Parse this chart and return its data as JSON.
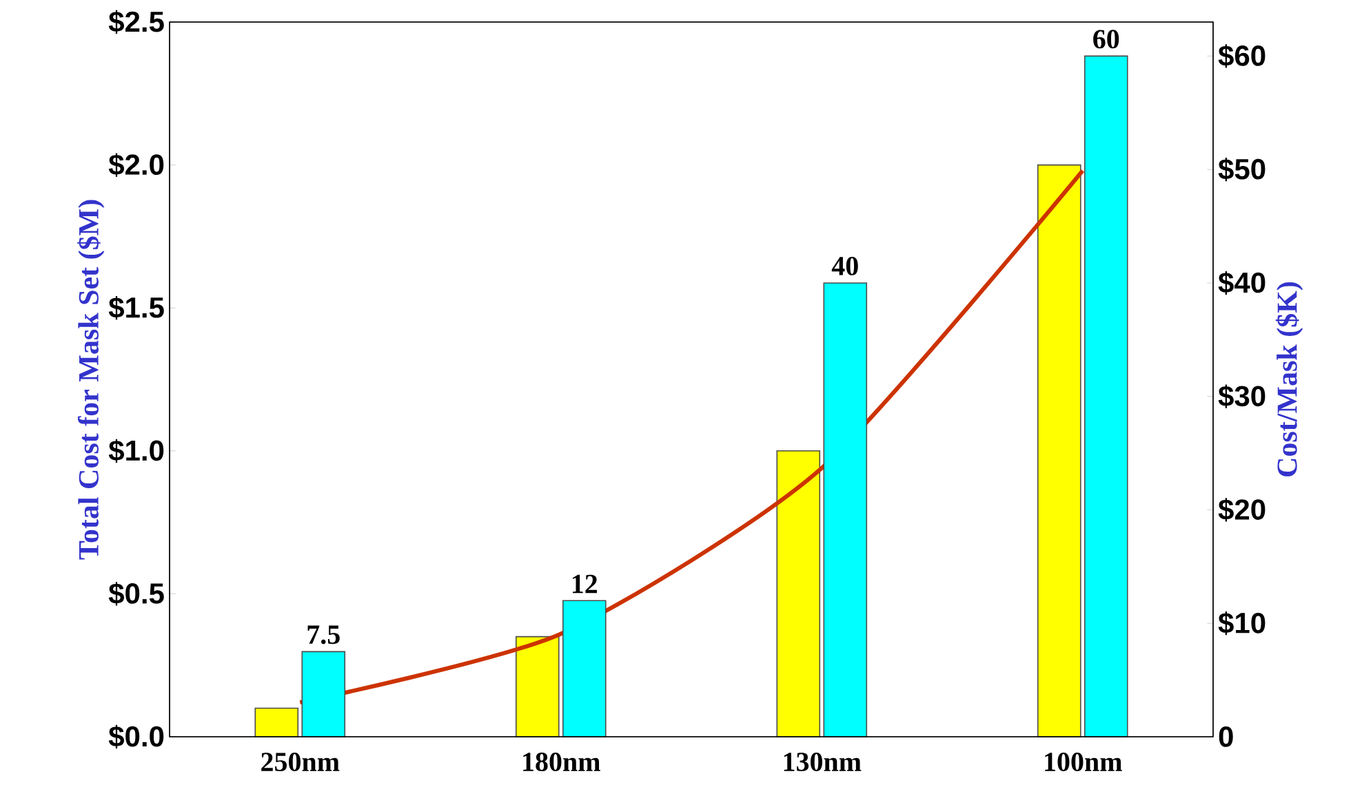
{
  "chart_data": {
    "type": "bar",
    "categories": [
      "250nm",
      "180nm",
      "130nm",
      "100nm"
    ],
    "ylabel": "Total Cost  for Mask Set ($M)",
    "y2label": "Cost/Mask ($K)",
    "ylim": [
      0,
      2.5
    ],
    "yticks": [
      {
        "value": 0,
        "label": "$0.0"
      },
      {
        "value": 0.5,
        "label": "$0.5"
      },
      {
        "value": 1,
        "label": "$1.0"
      },
      {
        "value": 1.5,
        "label": "$1.5"
      },
      {
        "value": 2,
        "label": "$2.0"
      },
      {
        "value": 2.5,
        "label": "$2.5"
      }
    ],
    "y2lim": [
      0,
      63
    ],
    "y2ticks": [
      0,
      {
        "value": 10,
        "label": "$10"
      },
      {
        "value": 20,
        "label": "$20"
      },
      {
        "value": 30,
        "label": "$30"
      },
      {
        "value": 40,
        "label": "$40"
      },
      {
        "value": 50,
        "label": "$50"
      },
      {
        "value": 60,
        "label": "$60"
      }
    ],
    "series": [
      {
        "color": "#ffff00",
        "values": [
          0.1,
          0.35,
          1.0,
          2.0
        ]
      },
      {
        "type": "bar",
        "axis": "y2",
        "color": "#00ffff",
        "values": [
          7.5,
          12,
          40,
          60
        ],
        "value_labels": [
          "7.5",
          "12",
          "40",
          "60"
        ]
      },
      {
        "type": "line",
        "color": "#cc3300",
        "values": [
          0.12,
          0.36,
          0.94,
          1.98
        ]
      }
    ]
  }
}
